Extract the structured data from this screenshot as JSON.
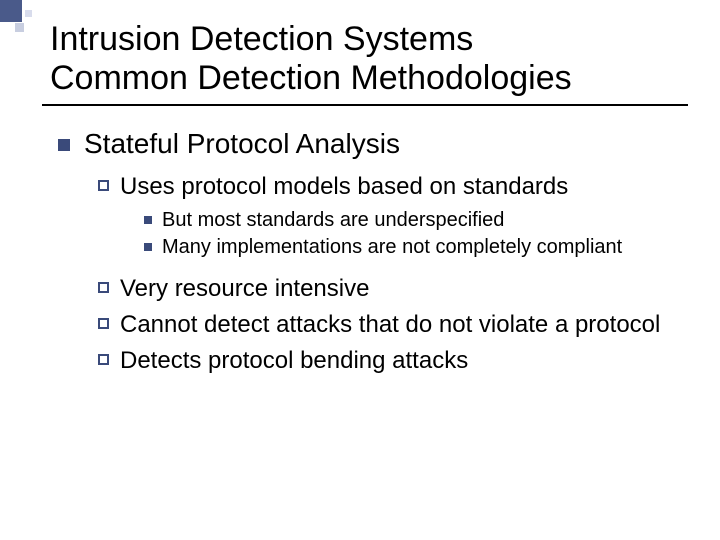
{
  "title_line1": "Intrusion Detection Systems",
  "title_line2": "Common Detection Methodologies",
  "heading": "Stateful Protocol Analysis",
  "sub1": "Uses protocol models based on standards",
  "sub1_children": {
    "a": "But most standards are underspecified",
    "b": "Many implementations are not completely compliant"
  },
  "sub2": "Very resource intensive",
  "sub3": "Cannot detect attacks that do not violate a protocol",
  "sub4": "Detects protocol bending attacks",
  "colors": {
    "bullet": "#3a4a7a",
    "deco_dark": "#4a5a8a",
    "deco_light1": "#c8cee0",
    "deco_light2": "#d8dcec",
    "background": "#ffffff",
    "text": "#000000"
  },
  "fonts": {
    "title_size": 34,
    "level1_size": 28,
    "level2_size": 24,
    "level3_size": 20,
    "family": "Arial"
  }
}
